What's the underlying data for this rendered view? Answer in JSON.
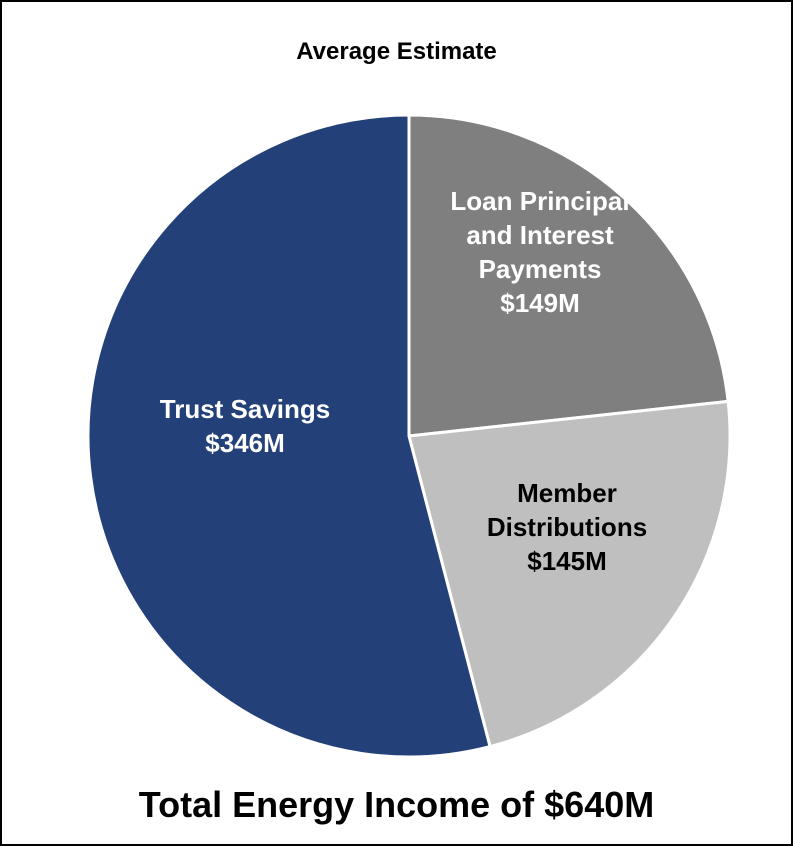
{
  "chart_data": {
    "type": "pie",
    "title": "Average Estimate",
    "footer": "Total Energy Income of $640M",
    "categories": [
      "Loan Principal and Interest Payments",
      "Member Distributions",
      "Trust Savings"
    ],
    "values": [
      149,
      145,
      346
    ],
    "value_labels": [
      "$149M",
      "$145M",
      "$346M"
    ],
    "colors": [
      "#7f7f7f",
      "#bfbfbf",
      "#234079"
    ]
  }
}
